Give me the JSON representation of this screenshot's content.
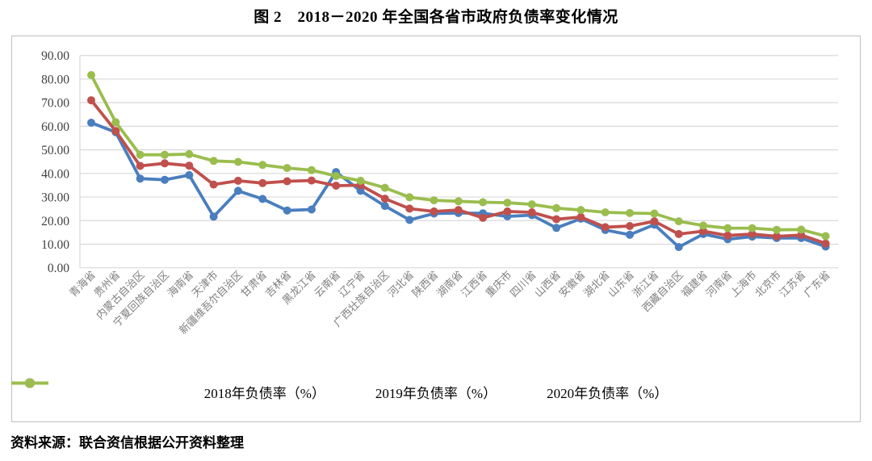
{
  "header": {
    "title": "图 2　2018－2020 年全国各省市政府负债率变化情况"
  },
  "source_note": "资料来源：联合资信根据公开资料整理",
  "colors": {
    "grid": "#D9D9D9",
    "frame_border": "#BFBFBF",
    "ytick_text": "#404040",
    "xtick_text": "#7F7F7F"
  },
  "chart_data": {
    "type": "line",
    "title": "图 2　2018－2020 年全国各省市政府负债率变化情况",
    "xlabel": "",
    "ylabel": "",
    "grid": true,
    "legend_position": "bottom",
    "ylim": [
      0,
      90
    ],
    "yticks": [
      0,
      10,
      20,
      30,
      40,
      50,
      60,
      70,
      80,
      90
    ],
    "ytick_labels": [
      "0.00",
      "10.00",
      "20.00",
      "30.00",
      "40.00",
      "50.00",
      "60.00",
      "70.00",
      "80.00",
      "90.00"
    ],
    "categories": [
      "青海省",
      "贵州省",
      "内蒙古自治区",
      "宁夏回族自治区",
      "海南省",
      "天津市",
      "新疆维吾尔自治区",
      "甘肃省",
      "吉林省",
      "黑龙江省",
      "云南省",
      "辽宁省",
      "广西壮族自治区",
      "河北省",
      "陕西省",
      "湖南省",
      "江西省",
      "重庆市",
      "四川省",
      "山西省",
      "安徽省",
      "湖北省",
      "山东省",
      "浙江省",
      "西藏自治区",
      "福建省",
      "河南省",
      "上海市",
      "北京市",
      "江苏省",
      "广东省"
    ],
    "series": [
      {
        "name": "2018年负债率（%）",
        "color": "#4A7EBE",
        "values": [
          61.5,
          57.5,
          37.8,
          37.3,
          39.3,
          21.7,
          32.6,
          29.2,
          24.3,
          24.7,
          40.6,
          32.7,
          26.2,
          20.3,
          23.0,
          23.2,
          23.1,
          21.8,
          22.3,
          16.9,
          20.8,
          16.0,
          14.0,
          18.3,
          8.8,
          14.3,
          12.1,
          13.2,
          12.6,
          12.6,
          9.0
        ]
      },
      {
        "name": "2019年负债率（%）",
        "color": "#C0504D",
        "values": [
          71.0,
          58.0,
          43.2,
          44.3,
          43.3,
          35.3,
          36.9,
          35.9,
          36.7,
          37.0,
          34.8,
          35.0,
          29.3,
          25.1,
          23.9,
          24.5,
          21.2,
          23.9,
          23.5,
          20.6,
          21.5,
          17.2,
          17.7,
          19.7,
          14.3,
          15.5,
          13.7,
          14.3,
          13.3,
          13.9,
          10.3
        ]
      },
      {
        "name": "2020年负债率（%）",
        "color": "#9ABD4E",
        "values": [
          81.7,
          61.7,
          47.9,
          47.9,
          48.2,
          45.3,
          44.9,
          43.6,
          42.3,
          41.4,
          38.9,
          36.9,
          33.9,
          29.9,
          28.6,
          28.2,
          27.8,
          27.6,
          26.9,
          25.3,
          24.5,
          23.5,
          23.2,
          23.0,
          19.7,
          17.9,
          16.8,
          16.8,
          16.1,
          16.2,
          13.4
        ]
      }
    ]
  }
}
